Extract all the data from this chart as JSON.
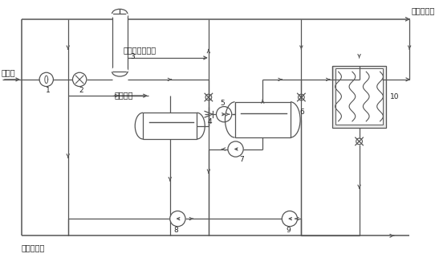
{
  "top_label": "冷冻水管网",
  "bottom_label": "冷冻水管网",
  "left_label": "原料气",
  "dryer_label": "去分子筛干燥器",
  "refrigerant_label": "混合冷剂",
  "fig_width": 5.42,
  "fig_height": 3.26,
  "dpi": 100,
  "lc": "#555555",
  "ec": "#555555",
  "tc": "#222222"
}
